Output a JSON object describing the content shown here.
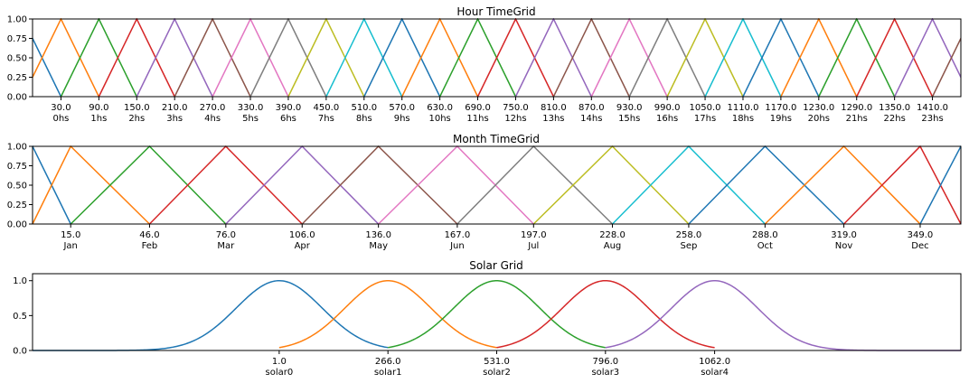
{
  "chart_data": [
    {
      "type": "line",
      "title": "Hour TimeGrid",
      "xlim": [
        -15,
        1455
      ],
      "ylim": [
        0,
        1
      ],
      "yticks": [
        "0.00",
        "0.25",
        "0.50",
        "0.75",
        "1.00"
      ],
      "xticks": [
        {
          "value": 30,
          "label": "30.0",
          "sub": "0hs"
        },
        {
          "value": 90,
          "label": "90.0",
          "sub": "1hs"
        },
        {
          "value": 150,
          "label": "150.0",
          "sub": "2hs"
        },
        {
          "value": 210,
          "label": "210.0",
          "sub": "3hs"
        },
        {
          "value": 270,
          "label": "270.0",
          "sub": "4hs"
        },
        {
          "value": 330,
          "label": "330.0",
          "sub": "5hs"
        },
        {
          "value": 390,
          "label": "390.0",
          "sub": "6hs"
        },
        {
          "value": 450,
          "label": "450.0",
          "sub": "7hs"
        },
        {
          "value": 510,
          "label": "510.0",
          "sub": "8hs"
        },
        {
          "value": 570,
          "label": "570.0",
          "sub": "9hs"
        },
        {
          "value": 630,
          "label": "630.0",
          "sub": "10hs"
        },
        {
          "value": 690,
          "label": "690.0",
          "sub": "11hs"
        },
        {
          "value": 750,
          "label": "750.0",
          "sub": "12hs"
        },
        {
          "value": 810,
          "label": "810.0",
          "sub": "13hs"
        },
        {
          "value": 870,
          "label": "870.0",
          "sub": "14hs"
        },
        {
          "value": 930,
          "label": "930.0",
          "sub": "15hs"
        },
        {
          "value": 990,
          "label": "990.0",
          "sub": "16hs"
        },
        {
          "value": 1050,
          "label": "1050.0",
          "sub": "17hs"
        },
        {
          "value": 1110,
          "label": "1110.0",
          "sub": "18hs"
        },
        {
          "value": 1170,
          "label": "1170.0",
          "sub": "19hs"
        },
        {
          "value": 1230,
          "label": "1230.0",
          "sub": "20hs"
        },
        {
          "value": 1290,
          "label": "1290.0",
          "sub": "21hs"
        },
        {
          "value": 1350,
          "label": "1350.0",
          "sub": "22hs"
        },
        {
          "value": 1410,
          "label": "1410.0",
          "sub": "23hs"
        }
      ],
      "triangles": {
        "first_peak": -30,
        "spacing": 60,
        "half_width": 60,
        "count": 26
      },
      "colors": [
        "#1f77b4",
        "#ff7f0e",
        "#2ca02c",
        "#d62728",
        "#9467bd",
        "#8c564b",
        "#e377c2",
        "#7f7f7f",
        "#bcbd22",
        "#17becf"
      ]
    },
    {
      "type": "line",
      "title": "Month TimeGrid",
      "xlim": [
        0,
        365
      ],
      "ylim": [
        0,
        1
      ],
      "yticks": [
        "0.00",
        "0.25",
        "0.50",
        "0.75",
        "1.00"
      ],
      "xticks": [
        {
          "value": 15,
          "label": "15.0",
          "sub": "Jan"
        },
        {
          "value": 46,
          "label": "46.0",
          "sub": "Feb"
        },
        {
          "value": 76,
          "label": "76.0",
          "sub": "Mar"
        },
        {
          "value": 106,
          "label": "106.0",
          "sub": "Apr"
        },
        {
          "value": 136,
          "label": "136.0",
          "sub": "May"
        },
        {
          "value": 167,
          "label": "167.0",
          "sub": "Jun"
        },
        {
          "value": 197,
          "label": "197.0",
          "sub": "Jul"
        },
        {
          "value": 228,
          "label": "228.0",
          "sub": "Aug"
        },
        {
          "value": 258,
          "label": "258.0",
          "sub": "Sep"
        },
        {
          "value": 288,
          "label": "288.0",
          "sub": "Oct"
        },
        {
          "value": 319,
          "label": "319.0",
          "sub": "Nov"
        },
        {
          "value": 349,
          "label": "349.0",
          "sub": "Dec"
        }
      ],
      "peaks": [
        -15,
        0,
        15,
        46,
        76,
        106,
        136,
        167,
        197,
        228,
        258,
        288,
        319,
        349,
        365,
        380
      ],
      "colors": [
        "#2ca02c",
        "#1f77b4",
        "#ff7f0e",
        "#2ca02c",
        "#d62728",
        "#9467bd",
        "#8c564b",
        "#e377c2",
        "#7f7f7f",
        "#bcbd22",
        "#17becf",
        "#1f77b4",
        "#ff7f0e",
        "#d62728",
        "#1f77b4",
        "#d62728"
      ]
    },
    {
      "type": "line",
      "title": "Solar Grid",
      "xlim": [
        -600,
        1662
      ],
      "ylim": [
        0,
        1.1
      ],
      "yticks": [
        "0.0",
        "0.5",
        "1.0"
      ],
      "ytick_values": [
        0,
        0.5,
        1.0
      ],
      "xticks": [
        {
          "value": 1,
          "label": "1.0",
          "sub": "solar0"
        },
        {
          "value": 266,
          "label": "266.0",
          "sub": "solar1"
        },
        {
          "value": 531,
          "label": "531.0",
          "sub": "solar2"
        },
        {
          "value": 796,
          "label": "796.0",
          "sub": "solar3"
        },
        {
          "value": 1062,
          "label": "1062.0",
          "sub": "solar4"
        }
      ],
      "gaussians": [
        {
          "center": 1,
          "sigma": 105,
          "from": -600,
          "to": 266,
          "color": "#1f77b4"
        },
        {
          "center": 266,
          "sigma": 105,
          "from": 1,
          "to": 531,
          "color": "#ff7f0e"
        },
        {
          "center": 531,
          "sigma": 105,
          "from": 266,
          "to": 796,
          "color": "#2ca02c"
        },
        {
          "center": 796,
          "sigma": 105,
          "from": 531,
          "to": 1062,
          "color": "#d62728"
        },
        {
          "center": 1062,
          "sigma": 105,
          "from": 796,
          "to": 1662,
          "color": "#9467bd"
        }
      ]
    }
  ]
}
